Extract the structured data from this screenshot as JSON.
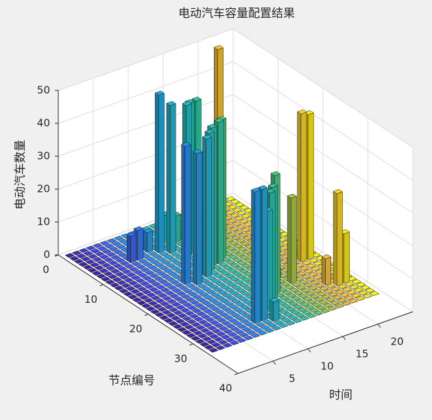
{
  "chart_data": {
    "type": "bar3",
    "title": "电动汽车容量配置结果",
    "xlabel": "时间",
    "ylabel": "节点编号",
    "zlabel": "电动汽车数量",
    "x": [
      1,
      2,
      3,
      4,
      5,
      6,
      7,
      8,
      9,
      10,
      11,
      12,
      13,
      14,
      15,
      16,
      17,
      18,
      19,
      20,
      21,
      22,
      23,
      24
    ],
    "y": [
      1,
      2,
      3,
      4,
      5,
      6,
      7,
      8,
      9,
      10,
      11,
      12,
      13,
      14,
      15,
      16,
      17,
      18,
      19,
      20,
      21,
      22,
      23,
      24,
      25,
      26,
      27,
      28,
      29,
      30,
      31,
      32,
      33
    ],
    "values": [
      [
        0,
        0,
        0,
        0,
        0,
        0,
        0,
        0,
        0,
        0,
        0,
        0,
        0,
        0,
        0,
        0,
        0,
        0,
        0,
        0,
        0,
        0,
        0,
        0
      ],
      [
        0,
        0,
        0,
        0,
        0,
        0,
        0,
        0,
        0,
        0,
        0,
        0,
        0,
        0,
        0,
        0,
        0,
        0,
        0,
        0,
        0,
        0,
        0,
        0
      ],
      [
        0,
        0,
        0,
        0,
        0,
        0,
        0,
        0,
        0,
        0,
        0,
        0,
        0,
        0,
        0,
        0,
        0,
        0,
        0,
        0,
        50,
        0,
        0,
        0
      ],
      [
        0,
        0,
        0,
        0,
        0,
        0,
        0,
        0,
        0,
        0,
        0,
        0,
        0,
        0,
        0,
        0,
        0,
        0,
        0,
        0,
        0,
        0,
        0,
        0
      ],
      [
        0,
        0,
        0,
        0,
        0,
        0,
        0,
        0,
        0,
        0,
        0,
        8,
        0,
        0,
        0,
        0,
        0,
        0,
        0,
        0,
        0,
        0,
        0,
        0
      ],
      [
        0,
        0,
        0,
        0,
        0,
        0,
        0,
        0,
        6,
        0,
        0,
        0,
        8,
        0,
        0,
        0,
        0,
        0,
        0,
        0,
        0,
        0,
        0,
        0
      ],
      [
        0,
        0,
        0,
        0,
        0,
        8,
        9,
        0,
        0,
        48,
        0,
        0,
        0,
        0,
        0,
        0,
        0,
        0,
        0,
        0,
        0,
        0,
        0,
        0
      ],
      [
        0,
        0,
        0,
        0,
        0,
        0,
        0,
        0,
        0,
        0,
        45,
        0,
        0,
        0,
        0,
        0,
        0,
        0,
        0,
        0,
        0,
        0,
        0,
        0
      ],
      [
        0,
        0,
        0,
        0,
        0,
        0,
        0,
        0,
        0,
        0,
        0,
        0,
        45,
        45,
        0,
        0,
        0,
        0,
        0,
        0,
        0,
        0,
        0,
        0
      ],
      [
        0,
        0,
        0,
        0,
        0,
        0,
        0,
        0,
        0,
        0,
        0,
        46,
        0,
        0,
        0,
        0,
        0,
        0,
        0,
        0,
        0,
        0,
        0,
        0
      ],
      [
        0,
        0,
        0,
        0,
        0,
        0,
        0,
        0,
        0,
        0,
        0,
        0,
        0,
        0,
        0,
        0,
        0,
        0,
        0,
        0,
        0,
        0,
        0,
        0
      ],
      [
        0,
        0,
        0,
        0,
        0,
        0,
        0,
        0,
        0,
        0,
        0,
        0,
        0,
        0,
        0,
        0,
        0,
        0,
        0,
        0,
        0,
        0,
        0,
        0
      ],
      [
        0,
        0,
        0,
        0,
        0,
        0,
        0,
        0,
        0,
        0,
        0,
        0,
        0,
        0,
        42,
        0,
        0,
        0,
        0,
        0,
        0,
        0,
        0,
        0
      ],
      [
        0,
        0,
        0,
        0,
        0,
        0,
        0,
        0,
        0,
        0,
        0,
        0,
        42,
        43,
        0,
        0,
        0,
        0,
        0,
        0,
        0,
        0,
        0,
        0
      ],
      [
        0,
        0,
        0,
        0,
        0,
        0,
        0,
        0,
        0,
        0,
        0,
        42,
        0,
        0,
        0,
        0,
        0,
        0,
        0,
        0,
        0,
        0,
        0,
        0
      ],
      [
        0,
        0,
        0,
        0,
        0,
        0,
        0,
        42,
        0,
        0,
        42,
        0,
        0,
        0,
        0,
        0,
        0,
        0,
        0,
        0,
        0,
        0,
        0,
        0
      ],
      [
        0,
        0,
        0,
        0,
        0,
        0,
        0,
        0,
        40,
        0,
        0,
        0,
        0,
        0,
        0,
        0,
        0,
        0,
        0,
        0,
        0,
        0,
        0,
        0
      ],
      [
        0,
        0,
        0,
        0,
        0,
        0,
        0,
        0,
        0,
        0,
        0,
        0,
        0,
        0,
        0,
        0,
        0,
        0,
        0,
        0,
        0,
        0,
        0,
        0
      ],
      [
        0,
        0,
        0,
        0,
        0,
        0,
        0,
        0,
        0,
        0,
        0,
        0,
        0,
        0,
        0,
        0,
        0,
        0,
        0,
        0,
        0,
        0,
        0,
        0
      ],
      [
        0,
        0,
        0,
        0,
        0,
        0,
        0,
        0,
        0,
        0,
        0,
        0,
        0,
        0,
        0,
        0,
        0,
        0,
        0,
        0,
        0,
        45,
        44,
        0
      ],
      [
        0,
        0,
        0,
        0,
        0,
        0,
        0,
        0,
        0,
        0,
        0,
        0,
        0,
        0,
        0,
        0,
        0,
        0,
        0,
        0,
        0,
        0,
        0,
        0
      ],
      [
        0,
        0,
        0,
        0,
        0,
        0,
        0,
        0,
        0,
        0,
        0,
        0,
        0,
        0,
        0,
        0,
        3,
        0,
        0,
        0,
        0,
        0,
        0,
        0
      ],
      [
        0,
        0,
        0,
        0,
        0,
        0,
        0,
        0,
        0,
        0,
        0,
        0,
        0,
        0,
        0,
        0,
        0,
        0,
        0,
        0,
        0,
        0,
        0,
        0
      ],
      [
        0,
        0,
        0,
        0,
        0,
        0,
        0,
        0,
        0,
        0,
        0,
        0,
        0,
        0,
        0,
        0,
        0,
        26,
        0,
        0,
        0,
        0,
        0,
        0
      ],
      [
        0,
        0,
        0,
        0,
        0,
        0,
        0,
        0,
        0,
        0,
        0,
        0,
        0,
        0,
        36,
        0,
        0,
        0,
        0,
        0,
        0,
        0,
        0,
        0
      ],
      [
        0,
        0,
        0,
        0,
        0,
        0,
        0,
        0,
        0,
        0,
        0,
        0,
        0,
        34,
        0,
        0,
        0,
        0,
        0,
        0,
        0,
        0,
        0,
        0
      ],
      [
        0,
        0,
        0,
        0,
        0,
        0,
        0,
        0,
        0,
        0,
        0,
        0,
        34,
        0,
        0,
        0,
        0,
        0,
        0,
        0,
        8,
        0,
        0,
        0
      ],
      [
        0,
        0,
        0,
        0,
        0,
        0,
        0,
        0,
        0,
        0,
        0,
        30,
        0,
        0,
        0,
        0,
        0,
        0,
        0,
        0,
        0,
        28,
        15,
        0
      ],
      [
        0,
        0,
        0,
        0,
        0,
        0,
        0,
        0,
        0,
        0,
        0,
        0,
        0,
        0,
        0,
        0,
        0,
        0,
        0,
        0,
        0,
        0,
        0,
        0
      ],
      [
        0,
        0,
        0,
        0,
        0,
        0,
        0,
        0,
        40,
        40,
        0,
        0,
        0,
        0,
        0,
        0,
        0,
        0,
        0,
        0,
        0,
        0,
        0,
        0
      ],
      [
        0,
        0,
        0,
        0,
        0,
        0,
        0,
        0,
        0,
        0,
        6,
        0,
        0,
        0,
        0,
        0,
        0,
        0,
        0,
        0,
        0,
        0,
        0,
        0
      ],
      [
        0,
        0,
        0,
        0,
        0,
        0,
        0,
        0,
        0,
        0,
        0,
        0,
        0,
        0,
        0,
        0,
        0,
        0,
        0,
        0,
        0,
        0,
        0,
        0
      ],
      [
        0,
        0,
        0,
        0,
        0,
        0,
        0,
        0,
        0,
        0,
        0,
        0,
        0,
        0,
        0,
        0,
        0,
        0,
        0,
        0,
        0,
        0,
        0,
        0
      ]
    ],
    "xlim": [
      0,
      25
    ],
    "xticks": [
      5,
      10,
      15,
      20
    ],
    "ylim": [
      0,
      40
    ],
    "yticks": [
      0,
      10,
      20,
      30,
      40
    ],
    "zlim": [
      0,
      50
    ],
    "zticks": [
      0,
      10,
      20,
      30,
      40,
      50
    ],
    "grid": true,
    "colormap": [
      "#3e26a8",
      "#4748f1",
      "#2e87f7",
      "#1fb4d3",
      "#30c79b",
      "#97ca3f",
      "#f6ba3a",
      "#f9fb15"
    ]
  }
}
